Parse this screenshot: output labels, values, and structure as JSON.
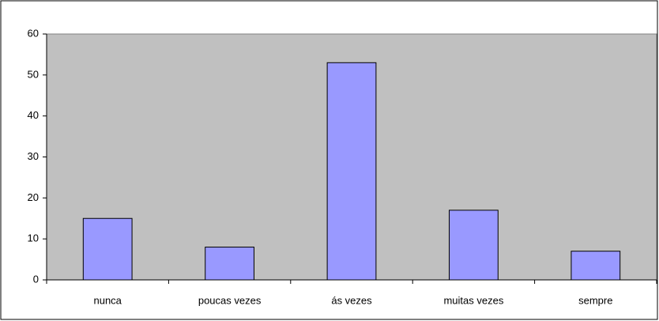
{
  "chart_data": {
    "type": "bar",
    "categories": [
      "nunca",
      "poucas vezes",
      "ás vezes",
      "muitas vezes",
      "sempre"
    ],
    "values": [
      15,
      8,
      53,
      17,
      7
    ],
    "color": "#9999ff",
    "ylim": [
      0,
      60
    ],
    "yticks": [
      0,
      10,
      20,
      30,
      40,
      50,
      60
    ],
    "grid": false
  }
}
